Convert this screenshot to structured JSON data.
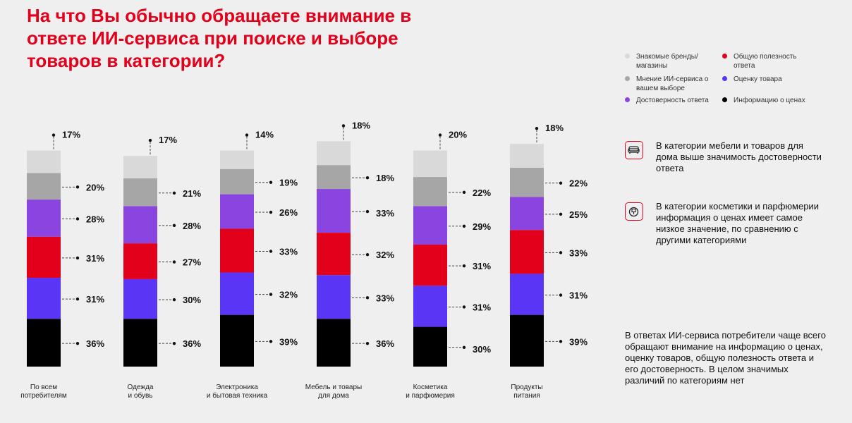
{
  "title": "На что Вы обычно обращаете внимание в ответе ИИ-сервиса при поиске и выборе товаров в категории?",
  "colors": {
    "accent": "#e3001b",
    "series": [
      "#d9d9d9",
      "#a6a6a6",
      "#8a44e0",
      "#e3001b",
      "#5a35f5",
      "#000000"
    ]
  },
  "legend": [
    {
      "label": "Знакомые бренды/ магазины",
      "color": "#d9d9d9"
    },
    {
      "label": "Общую полезность ответа",
      "color": "#e3001b"
    },
    {
      "label": "Мнение ИИ-сервиса о вашем выборе",
      "color": "#a6a6a6"
    },
    {
      "label": "Оценку товара",
      "color": "#5a35f5"
    },
    {
      "label": "Достоверность ответа",
      "color": "#8a44e0"
    },
    {
      "label": "Информацию о ценах",
      "color": "#000000"
    }
  ],
  "notes": [
    {
      "icon": "sofa-icon",
      "text": "В категории мебели и товаров для дома выше значимость достоверности ответа"
    },
    {
      "icon": "cosmetics-icon",
      "text": "В категории косметики и парфюмерии информация о ценах имеет самое низкое значение, по сравнению с другими категориями"
    }
  ],
  "summary": "В ответах ИИ-сервиса потребители чаще всего обращают внимание на информацию о ценах, оценку товаров, общую полезность ответа и его достоверность. В целом значимых различий по категориям нет",
  "chart_data": {
    "type": "bar",
    "stacked": true,
    "unit": "%",
    "categories": [
      [
        "По всем",
        "потребителям"
      ],
      [
        "Одежда",
        "и обувь"
      ],
      [
        "Электроника",
        "и бытовая техника"
      ],
      [
        "Мебель и товары",
        "для дома"
      ],
      [
        "Косметика",
        "и парфюмерия"
      ],
      [
        "Продукты",
        "питания"
      ]
    ],
    "series": [
      {
        "name": "Знакомые бренды/ магазины",
        "values": [
          17,
          17,
          14,
          18,
          20,
          18
        ]
      },
      {
        "name": "Мнение ИИ-сервиса о вашем выборе",
        "values": [
          20,
          21,
          19,
          18,
          22,
          22
        ]
      },
      {
        "name": "Достоверность ответа",
        "values": [
          28,
          28,
          26,
          33,
          29,
          25
        ]
      },
      {
        "name": "Общую полезность ответа",
        "values": [
          31,
          27,
          33,
          32,
          31,
          33
        ]
      },
      {
        "name": "Оценку товара",
        "values": [
          31,
          30,
          32,
          33,
          31,
          31
        ]
      },
      {
        "name": "Информацию о ценах",
        "values": [
          36,
          36,
          39,
          36,
          30,
          39
        ]
      }
    ],
    "highlights": [
      {
        "category": 3,
        "series": 2,
        "style": "red-large"
      },
      {
        "category": 4,
        "series": 5,
        "style": "black-large"
      }
    ]
  }
}
